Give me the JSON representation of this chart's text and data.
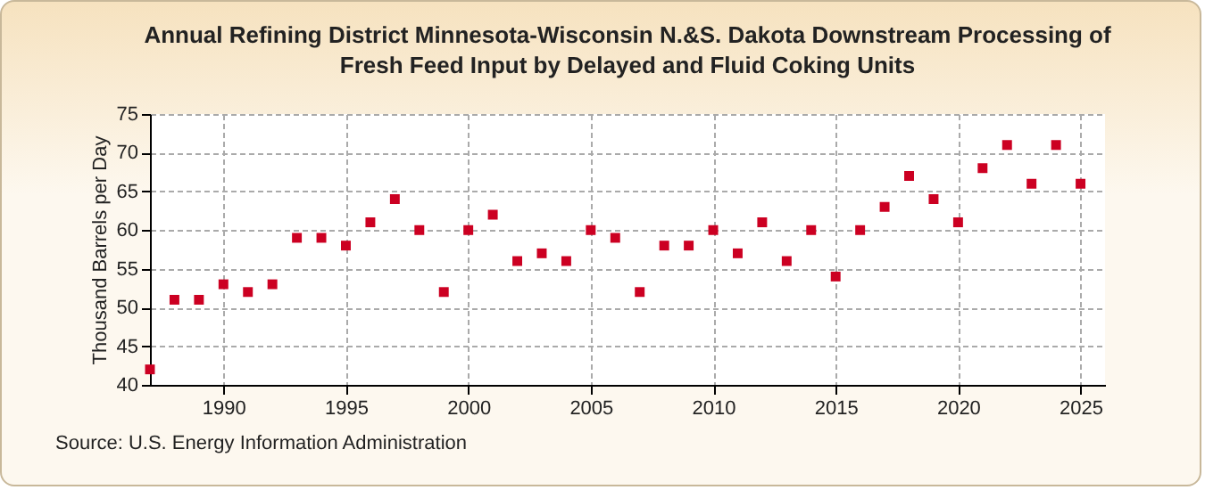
{
  "chart_data": {
    "type": "scatter",
    "title": "Annual Refining District Minnesota-Wisconsin N.&S. Dakota Downstream Processing of Fresh Feed Input by Delayed and Fluid Coking Units",
    "ylabel": "Thousand Barrels per Day",
    "annotations": [
      "Source: U.S. Energy Information Administration"
    ],
    "x": [
      1987,
      1988,
      1989,
      1990,
      1991,
      1992,
      1993,
      1994,
      1995,
      1996,
      1997,
      1998,
      1999,
      2000,
      2001,
      2002,
      2003,
      2004,
      2005,
      2006,
      2007,
      2008,
      2009,
      2010,
      2011,
      2012,
      2013,
      2014,
      2015,
      2016,
      2017,
      2018,
      2019,
      2020,
      2021,
      2022,
      2023,
      2024,
      2025
    ],
    "series": [
      {
        "color": "#cc0022",
        "values": [
          42,
          51,
          51,
          53,
          52,
          53,
          59,
          59,
          58,
          61,
          64,
          60,
          52,
          60,
          62,
          56,
          57,
          56,
          60,
          59,
          52,
          58,
          58,
          60,
          57,
          61,
          56,
          60,
          54,
          60,
          63,
          67,
          64,
          61,
          68,
          71,
          66,
          71,
          66
        ]
      }
    ],
    "xlim": [
      1987,
      2026
    ],
    "xticks": [
      1990,
      1995,
      2000,
      2005,
      2010,
      2015,
      2020,
      2025
    ],
    "ylim": [
      40,
      75
    ],
    "yticks": [
      40,
      45,
      50,
      55,
      60,
      65,
      70,
      75
    ],
    "grid": true,
    "marker": "square",
    "legend": false
  }
}
